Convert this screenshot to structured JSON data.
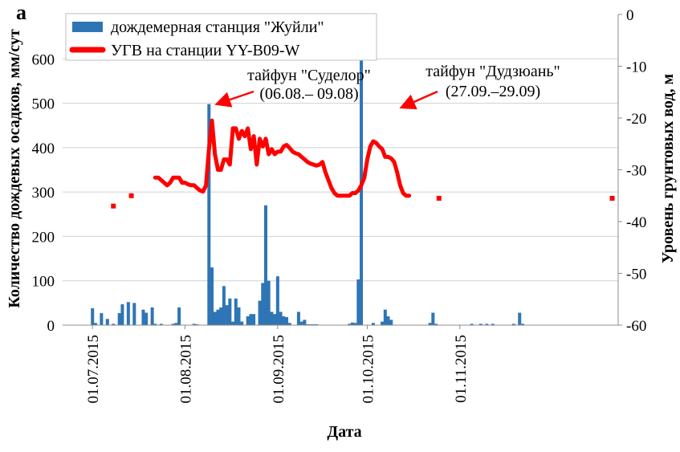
{
  "chart_data": {
    "type": "bar+line",
    "panel_label": "а",
    "xlabel": "Дата",
    "ylabel_left": "Количество дождевых осадков, мм/сут",
    "ylabel_right": "Уровень грунтовых вод, м",
    "y_left_range": [
      0,
      700
    ],
    "y_left_ticks": [
      "0",
      "100",
      "200",
      "300",
      "400",
      "500",
      "600"
    ],
    "y_right_range": [
      -60,
      0
    ],
    "y_right_ticks": [
      "0",
      "-10",
      "-20",
      "-30",
      "-40",
      "-50",
      "-60"
    ],
    "x_range": [
      "2015-06-21",
      "2015-12-24"
    ],
    "x_ticks": [
      {
        "date": "2015-07-01",
        "label": "01.07.2015"
      },
      {
        "date": "2015-08-01",
        "label": "01.08.2015"
      },
      {
        "date": "2015-09-01",
        "label": "01.09.2015"
      },
      {
        "date": "2015-10-01",
        "label": "01.10.2015"
      },
      {
        "date": "2015-11-01",
        "label": "01.11.2015"
      }
    ],
    "grid": "horizontal",
    "legend_position": "top-left",
    "legend": [
      {
        "label": "дождемерная станция \"Жуйли\"",
        "color": "#2e75b6",
        "kind": "bar"
      },
      {
        "label": "УГВ на станции YY-B09-W",
        "color": "#ff0000",
        "kind": "line"
      }
    ],
    "rain_series": {
      "name": "дождемерная станция \"Жуйли\"",
      "color": "#2e75b6",
      "points": [
        [
          "2015-07-01",
          38
        ],
        [
          "2015-07-02",
          5
        ],
        [
          "2015-07-04",
          27
        ],
        [
          "2015-07-06",
          14
        ],
        [
          "2015-07-08",
          3
        ],
        [
          "2015-07-10",
          27
        ],
        [
          "2015-07-11",
          47
        ],
        [
          "2015-07-13",
          52
        ],
        [
          "2015-07-15",
          50
        ],
        [
          "2015-07-18",
          35
        ],
        [
          "2015-07-19",
          28
        ],
        [
          "2015-07-21",
          40
        ],
        [
          "2015-07-22",
          3
        ],
        [
          "2015-07-24",
          3
        ],
        [
          "2015-07-28",
          3
        ],
        [
          "2015-07-29",
          5
        ],
        [
          "2015-07-30",
          40
        ],
        [
          "2015-08-04",
          3
        ],
        [
          "2015-08-05",
          2
        ],
        [
          "2015-08-09",
          498
        ],
        [
          "2015-08-10",
          130
        ],
        [
          "2015-08-11",
          30
        ],
        [
          "2015-08-12",
          35
        ],
        [
          "2015-08-13",
          40
        ],
        [
          "2015-08-14",
          88
        ],
        [
          "2015-08-15",
          45
        ],
        [
          "2015-08-16",
          60
        ],
        [
          "2015-08-17",
          8
        ],
        [
          "2015-08-18",
          60
        ],
        [
          "2015-08-19",
          40
        ],
        [
          "2015-08-20",
          8
        ],
        [
          "2015-08-22",
          20
        ],
        [
          "2015-08-23",
          25
        ],
        [
          "2015-08-24",
          25
        ],
        [
          "2015-08-26",
          55
        ],
        [
          "2015-08-27",
          95
        ],
        [
          "2015-08-28",
          270
        ],
        [
          "2015-08-29",
          100
        ],
        [
          "2015-08-30",
          30
        ],
        [
          "2015-08-31",
          25
        ],
        [
          "2015-09-01",
          110
        ],
        [
          "2015-09-02",
          30
        ],
        [
          "2015-09-03",
          20
        ],
        [
          "2015-09-04",
          18
        ],
        [
          "2015-09-05",
          5
        ],
        [
          "2015-09-08",
          3
        ],
        [
          "2015-09-09",
          2
        ],
        [
          "2015-09-10",
          2
        ],
        [
          "2015-09-11",
          2
        ],
        [
          "2015-09-12",
          2
        ],
        [
          "2015-09-13",
          2
        ],
        [
          "2015-09-14",
          2
        ],
        [
          "2015-09-08",
          30
        ],
        [
          "2015-09-09",
          8
        ],
        [
          "2015-09-10",
          12
        ],
        [
          "2015-09-25",
          3
        ],
        [
          "2015-09-26",
          6
        ],
        [
          "2015-09-27",
          5
        ],
        [
          "2015-09-28",
          103
        ],
        [
          "2015-09-29",
          672
        ],
        [
          "2015-10-03",
          5
        ],
        [
          "2015-10-06",
          8
        ],
        [
          "2015-10-07",
          35
        ],
        [
          "2015-10-08",
          20
        ],
        [
          "2015-10-09",
          12
        ],
        [
          "2015-10-22",
          5
        ],
        [
          "2015-10-23",
          28
        ],
        [
          "2015-10-24",
          3
        ],
        [
          "2015-11-05",
          3
        ],
        [
          "2015-11-08",
          3
        ],
        [
          "2015-11-10",
          3
        ],
        [
          "2015-11-12",
          3
        ],
        [
          "2015-11-19",
          3
        ],
        [
          "2015-11-21",
          28
        ],
        [
          "2015-11-22",
          3
        ]
      ]
    },
    "gwl_series": {
      "name": "УГВ на станции YY-B09-W",
      "color": "#ff0000",
      "isolated_points": [
        [
          "2015-07-08",
          -37.0
        ],
        [
          "2015-07-14",
          -35.0
        ],
        [
          "2015-10-25",
          -35.5
        ],
        [
          "2015-12-22",
          -35.5
        ]
      ],
      "line_points": [
        [
          "2015-07-22",
          -31.5
        ],
        [
          "2015-07-23",
          -31.5
        ],
        [
          "2015-07-24",
          -32.0
        ],
        [
          "2015-07-25",
          -32.5
        ],
        [
          "2015-07-26",
          -33.0
        ],
        [
          "2015-07-27",
          -32.5
        ],
        [
          "2015-07-28",
          -31.5
        ],
        [
          "2015-07-29",
          -31.5
        ],
        [
          "2015-07-30",
          -31.5
        ],
        [
          "2015-07-31",
          -32.5
        ],
        [
          "2015-08-01",
          -32.5
        ],
        [
          "2015-08-02",
          -32.8
        ],
        [
          "2015-08-03",
          -33.0
        ],
        [
          "2015-08-04",
          -33.0
        ],
        [
          "2015-08-05",
          -33.5
        ],
        [
          "2015-08-06",
          -34.0
        ],
        [
          "2015-08-07",
          -34.2
        ],
        [
          "2015-08-08",
          -33.0
        ],
        [
          "2015-08-09",
          -26.0
        ],
        [
          "2015-08-10",
          -20.5
        ],
        [
          "2015-08-11",
          -27.0
        ],
        [
          "2015-08-12",
          -30.0
        ],
        [
          "2015-08-13",
          -30.0
        ],
        [
          "2015-08-14",
          -28.0
        ],
        [
          "2015-08-15",
          -28.0
        ],
        [
          "2015-08-16",
          -29.0
        ],
        [
          "2015-08-17",
          -22.0
        ],
        [
          "2015-08-18",
          -22.0
        ],
        [
          "2015-08-19",
          -24.0
        ],
        [
          "2015-08-20",
          -22.5
        ],
        [
          "2015-08-21",
          -23.5
        ],
        [
          "2015-08-22",
          -22.0
        ],
        [
          "2015-08-23",
          -26.0
        ],
        [
          "2015-08-24",
          -23.5
        ],
        [
          "2015-08-25",
          -29.0
        ],
        [
          "2015-08-26",
          -24.0
        ],
        [
          "2015-08-27",
          -25.5
        ],
        [
          "2015-08-28",
          -24.0
        ],
        [
          "2015-08-29",
          -27.0
        ],
        [
          "2015-08-30",
          -26.0
        ],
        [
          "2015-08-31",
          -27.0
        ],
        [
          "2015-09-01",
          -26.5
        ],
        [
          "2015-09-02",
          -26.5
        ],
        [
          "2015-09-03",
          -25.5
        ],
        [
          "2015-09-04",
          -25.2
        ],
        [
          "2015-09-05",
          -25.8
        ],
        [
          "2015-09-06",
          -26.5
        ],
        [
          "2015-09-07",
          -26.8
        ],
        [
          "2015-09-08",
          -27.0
        ],
        [
          "2015-09-09",
          -27.5
        ],
        [
          "2015-09-10",
          -28.0
        ],
        [
          "2015-09-11",
          -28.5
        ],
        [
          "2015-09-12",
          -28.8
        ],
        [
          "2015-09-13",
          -29.0
        ],
        [
          "2015-09-14",
          -29.2
        ],
        [
          "2015-09-15",
          -29.0
        ],
        [
          "2015-09-16",
          -28.5
        ],
        [
          "2015-09-17",
          -30.5
        ],
        [
          "2015-09-18",
          -32.0
        ],
        [
          "2015-09-19",
          -33.5
        ],
        [
          "2015-09-20",
          -34.5
        ],
        [
          "2015-09-21",
          -35.0
        ],
        [
          "2015-09-22",
          -35.0
        ],
        [
          "2015-09-23",
          -35.0
        ],
        [
          "2015-09-24",
          -35.0
        ],
        [
          "2015-09-25",
          -35.0
        ],
        [
          "2015-09-26",
          -34.5
        ],
        [
          "2015-09-27",
          -34.5
        ],
        [
          "2015-09-28",
          -34.0
        ],
        [
          "2015-09-29",
          -33.0
        ],
        [
          "2015-09-30",
          -31.5
        ],
        [
          "2015-10-01",
          -28.0
        ],
        [
          "2015-10-02",
          -25.5
        ],
        [
          "2015-10-03",
          -24.5
        ],
        [
          "2015-10-04",
          -24.8
        ],
        [
          "2015-10-05",
          -25.5
        ],
        [
          "2015-10-06",
          -26.0
        ],
        [
          "2015-10-07",
          -27.5
        ],
        [
          "2015-10-08",
          -27.5
        ],
        [
          "2015-10-09",
          -27.8
        ],
        [
          "2015-10-10",
          -28.5
        ],
        [
          "2015-10-11",
          -30.5
        ],
        [
          "2015-10-12",
          -33.0
        ],
        [
          "2015-10-13",
          -34.5
        ],
        [
          "2015-10-14",
          -35.0
        ],
        [
          "2015-10-15",
          -35.0
        ]
      ]
    },
    "annotations": [
      {
        "label": "тайфун \"Суделор\"",
        "dates": "(06.08.– 09.08)"
      },
      {
        "label": "тайфун \"Дудзюань\"",
        "dates": "(27.09.–29.09)"
      }
    ]
  }
}
